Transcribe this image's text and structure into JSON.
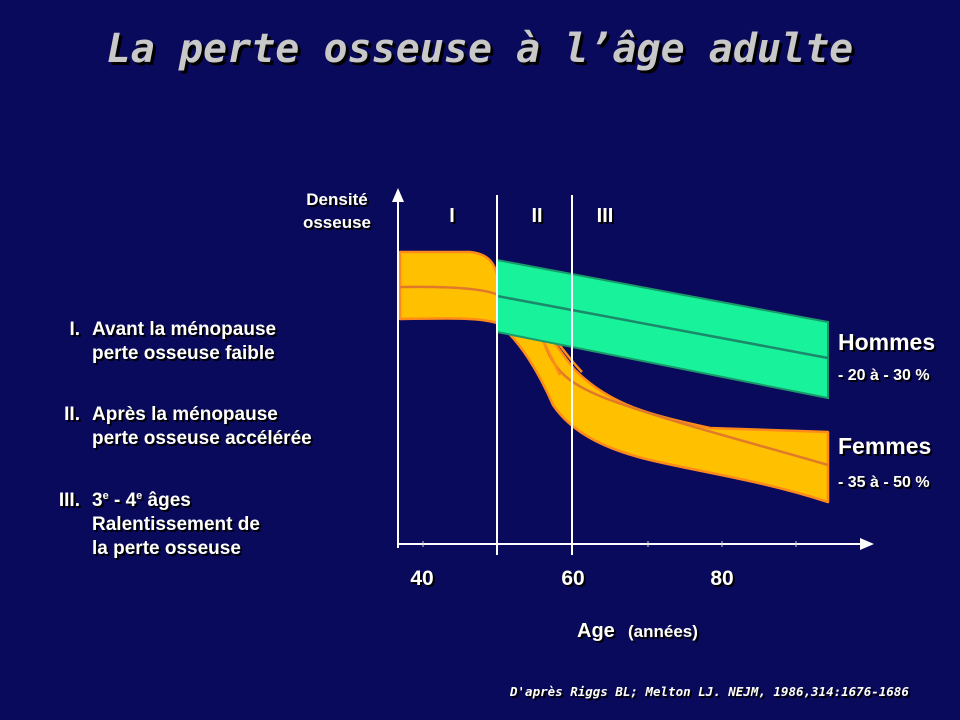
{
  "title": "La perte osseuse à l’âge adulte",
  "phases": [
    {
      "numeral": "I.",
      "line1": "Avant la ménopause",
      "line2": "perte osseuse faible"
    },
    {
      "numeral": "II.",
      "line1": "Après la ménopause",
      "line2": "perte osseuse accélérée"
    },
    {
      "numeral": "III.",
      "line1_a": "3",
      "line1_sup_a": "e",
      "line1_b": " - 4",
      "line1_sup_b": "e",
      "line1_c": " âges",
      "line2": "Ralentissement de",
      "line3": "la perte osseuse"
    }
  ],
  "diagram": {
    "y_axis_label_line1": "Densité",
    "y_axis_label_line2": "osseuse",
    "period_labels": [
      "I",
      "II",
      "III"
    ],
    "x_ticks": [
      "40",
      "60",
      "80"
    ],
    "x_axis_label": "Age",
    "x_axis_unit": "(années)",
    "men": {
      "label": "Hommes",
      "range": "- 20 à - 30 %"
    },
    "women": {
      "label": "Femmes",
      "range": "- 35 à - 50 %"
    }
  },
  "colors": {
    "background": "#0a0a5c",
    "women_band": "#ffc000",
    "women_edge": "#ff8a1a",
    "men_band": "#18f29a",
    "men_edge": "#1a9a6a"
  },
  "source": "D'après Riggs BL; Melton LJ. NEJM, 1986,314:1676-1686"
}
